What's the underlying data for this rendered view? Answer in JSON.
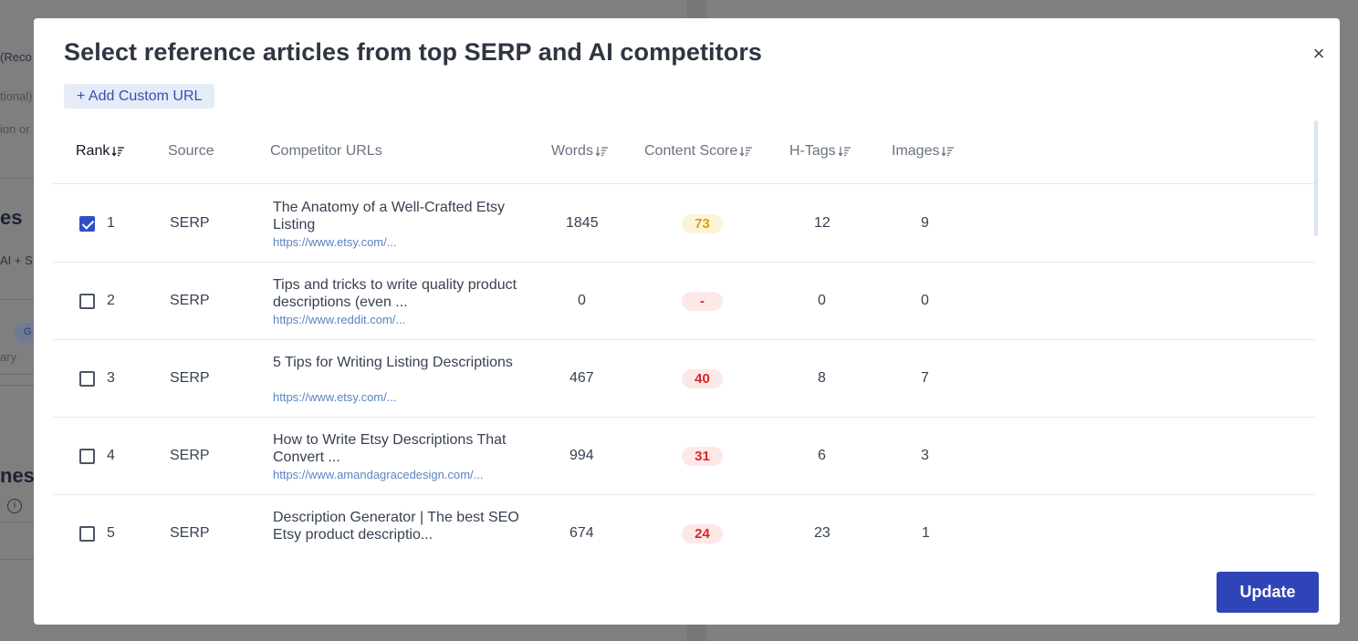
{
  "modal": {
    "title": "Select reference articles from top SERP and AI competitors",
    "close_label": "×",
    "add_custom_url": "+ Add Custom URL",
    "update_label": "Update"
  },
  "table": {
    "headers": {
      "rank": "Rank",
      "source": "Source",
      "competitor_urls": "Competitor URLs",
      "words": "Words",
      "content_score": "Content Score",
      "h_tags": "H-Tags",
      "images": "Images"
    },
    "rows": [
      {
        "checked": true,
        "rank": "1",
        "source": "SERP",
        "title": "The Anatomy of a Well-Crafted Etsy Listing",
        "url": "https://www.etsy.com/...",
        "words": "1845",
        "score": "73",
        "score_level": "medium",
        "h_tags": "12",
        "images": "9"
      },
      {
        "checked": false,
        "rank": "2",
        "source": "SERP",
        "title": "Tips and tricks to write quality product descriptions (even ...",
        "url": "https://www.reddit.com/...",
        "words": "0",
        "score": "-",
        "score_level": "low",
        "h_tags": "0",
        "images": "0"
      },
      {
        "checked": false,
        "rank": "3",
        "source": "SERP",
        "title": "5 Tips for Writing Listing Descriptions",
        "url": "https://www.etsy.com/...",
        "words": "467",
        "score": "40",
        "score_level": "low",
        "h_tags": "8",
        "images": "7"
      },
      {
        "checked": false,
        "rank": "4",
        "source": "SERP",
        "title": "How to Write Etsy Descriptions That Convert ...",
        "url": "https://www.amandagracedesign.com/...",
        "words": "994",
        "score": "31",
        "score_level": "low",
        "h_tags": "6",
        "images": "3"
      },
      {
        "checked": false,
        "rank": "5",
        "source": "SERP",
        "title": "Description Generator | The best SEO Etsy product descriptio...",
        "url": "",
        "words": "674",
        "score": "24",
        "score_level": "low",
        "h_tags": "23",
        "images": "1"
      }
    ]
  },
  "colors": {
    "accent": "#2f45b7",
    "score_medium_bg": "#fdf3d6",
    "score_medium_text": "#d4a017",
    "score_low_bg": "#fde8e8",
    "score_low_text": "#dc2626"
  },
  "icons": {
    "sort": "sort-descending-icon",
    "close": "close-icon",
    "info": "info-icon"
  },
  "background": {
    "fragments": [
      "(Reco",
      "tional)",
      "ion or",
      "es",
      "AI + S",
      "G",
      "ary",
      "nes",
      "i"
    ]
  }
}
